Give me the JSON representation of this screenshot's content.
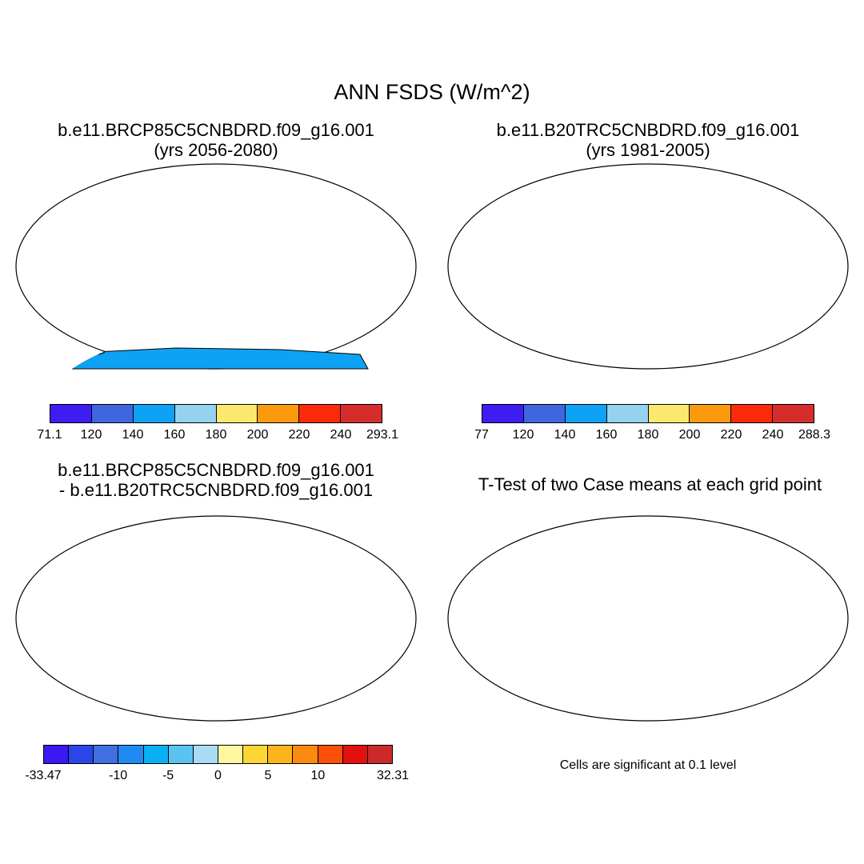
{
  "title": "ANN FSDS (W/m^2)",
  "panels": [
    {
      "line1": "b.e11.BRCP85C5CNBDRD.f09_g16.001",
      "line2": "(yrs 2056-2080)"
    },
    {
      "line1": "b.e11.B20TRC5CNBDRD.f09_g16.001",
      "line2": "(yrs 1981-2005)"
    },
    {
      "line1": "b.e11.BRCP85C5CNBDRD.f09_g16.001",
      "line2": "- b.e11.B20TRC5CNBDRD.f09_g16.001"
    },
    {
      "line1": "T-Test of two Case means at each grid point"
    }
  ],
  "colorbars": [
    {
      "colors": [
        "#3d1df2",
        "#3f66e0",
        "#0ea2f4",
        "#94d2f0",
        "#fce86e",
        "#fb9a0c",
        "#fb2a08",
        "#d72c2c"
      ],
      "labels": [
        "71.1",
        "120",
        "140",
        "160",
        "180",
        "200",
        "220",
        "240",
        "293.1"
      ]
    },
    {
      "colors": [
        "#3d1df2",
        "#3f66e0",
        "#0ea2f4",
        "#94d2f0",
        "#fce86e",
        "#fb9a0c",
        "#fb2a08",
        "#d72c2c"
      ],
      "labels": [
        "77",
        "120",
        "140",
        "160",
        "180",
        "200",
        "220",
        "240",
        "288.3"
      ]
    },
    {
      "colors": [
        "#3a19f5",
        "#2a46e8",
        "#3f6fe0",
        "#1f8bf0",
        "#0ab0f5",
        "#5cc3f0",
        "#a9dcf4",
        "#fff6a0",
        "#fdd636",
        "#fbb41b",
        "#fb8a10",
        "#fb500a",
        "#e41010",
        "#cc2a2a"
      ],
      "labels": [
        "-33.47",
        "-10",
        "-5",
        "0",
        "5",
        "10",
        "32.31"
      ]
    }
  ],
  "significance_note": "Cells are significant at 0.1 level",
  "colors": {
    "significant": "#f21111",
    "land_outline": "#000000"
  }
}
